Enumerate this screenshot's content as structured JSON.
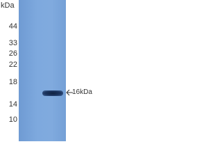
{
  "unit_label": "kDa",
  "markers": [
    "44",
    "33",
    "26",
    "22",
    "18",
    "14",
    "10"
  ],
  "band_label": "16kDa"
}
